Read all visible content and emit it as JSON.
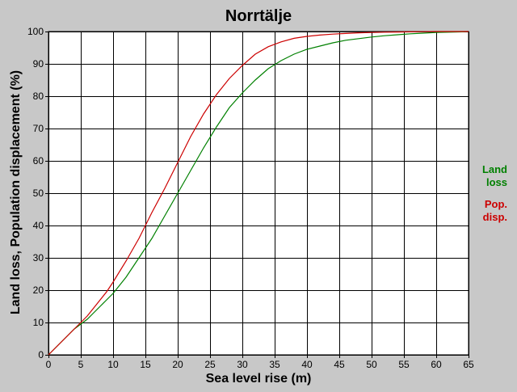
{
  "chart_data": {
    "type": "line",
    "title": "Norrtälje",
    "xlabel": "Sea level rise (m)",
    "ylabel": "Land loss, Population displacement (%)",
    "xlim": [
      0,
      65
    ],
    "ylim": [
      0,
      100
    ],
    "x_ticks": [
      "0",
      "5",
      "10",
      "15",
      "20",
      "25",
      "30",
      "35",
      "40",
      "45",
      "50",
      "55",
      "60",
      "65"
    ],
    "y_ticks": [
      "0",
      "10",
      "20",
      "30",
      "40",
      "50",
      "60",
      "70",
      "80",
      "90",
      "100"
    ],
    "grid": true,
    "legend_position": "right",
    "legend": [
      {
        "line1": "Land",
        "line2": "loss",
        "color": "#008000"
      },
      {
        "line1": "Pop.",
        "line2": "disp.",
        "color": "#cc0000"
      }
    ],
    "series": [
      {
        "color": "#008000",
        "x": [
          0,
          1,
          2,
          3,
          4,
          5,
          6,
          7,
          8,
          9,
          10,
          12,
          14,
          16,
          18,
          20,
          22,
          24,
          26,
          28,
          30,
          32,
          34,
          36,
          38,
          40,
          42,
          44,
          46,
          48,
          50,
          52,
          54,
          56,
          58,
          60,
          62,
          64,
          65
        ],
        "y": [
          0,
          2,
          4,
          6,
          8,
          9.5,
          11,
          13,
          15,
          17,
          19,
          24,
          30,
          36,
          43,
          50,
          57,
          64,
          70.5,
          76.5,
          81,
          85,
          88.5,
          91,
          93,
          94.5,
          95.5,
          96.5,
          97.3,
          97.8,
          98.3,
          98.7,
          99,
          99.3,
          99.5,
          99.7,
          99.8,
          99.9,
          100
        ]
      },
      {
        "color": "#cc0000",
        "x": [
          0,
          1,
          2,
          3,
          4,
          5,
          6,
          7,
          8,
          9,
          10,
          12,
          14,
          16,
          18,
          20,
          22,
          24,
          26,
          28,
          30,
          32,
          34,
          36,
          38,
          40,
          42,
          44,
          46,
          48,
          50,
          52,
          54,
          56,
          58,
          60,
          62,
          64,
          65
        ],
        "y": [
          0,
          2,
          4,
          6,
          8,
          10,
          12,
          14.5,
          17,
          19.5,
          22.5,
          29,
          36,
          44,
          51.5,
          59.5,
          67.5,
          74.5,
          80.5,
          85.5,
          89.5,
          93,
          95.3,
          96.8,
          97.9,
          98.5,
          98.9,
          99.2,
          99.4,
          99.6,
          99.7,
          99.8,
          99.85,
          99.9,
          99.95,
          100,
          100,
          100,
          100
        ]
      }
    ]
  }
}
